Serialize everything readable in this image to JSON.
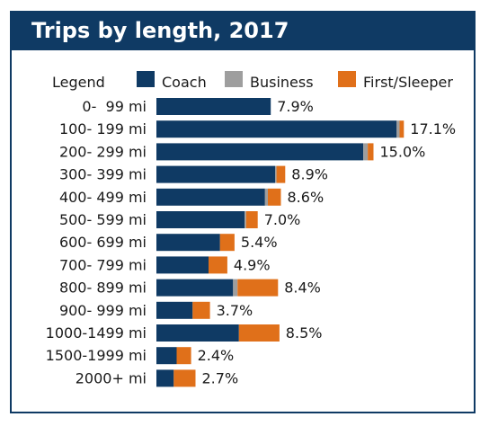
{
  "chart_data": {
    "type": "bar",
    "stacked": true,
    "orientation": "horizontal",
    "title": "Trips by length, 2017",
    "legend_title": "Legend",
    "legend_position": "top",
    "categories": [
      "0-  99 mi",
      "100- 199 mi",
      "200- 299 mi",
      "300- 399 mi",
      "400- 499 mi",
      "500- 599 mi",
      "600- 699 mi",
      "700- 799 mi",
      "800- 899 mi",
      "900- 999 mi",
      "1000-1499 mi",
      "1500-1999 mi",
      "2000+ mi"
    ],
    "totals": [
      7.9,
      17.1,
      15.0,
      8.9,
      8.6,
      7.0,
      5.4,
      4.9,
      8.4,
      3.7,
      8.5,
      2.4,
      2.7
    ],
    "total_labels": [
      "7.9%",
      "17.1%",
      "15.0%",
      "8.9%",
      "8.6%",
      "7.0%",
      "5.4%",
      "4.9%",
      "8.4%",
      "3.7%",
      "8.5%",
      "2.4%",
      "2.7%"
    ],
    "series": [
      {
        "name": "Coach",
        "color": "#0f3a64",
        "values": [
          7.9,
          16.6,
          14.3,
          8.2,
          7.5,
          6.1,
          4.4,
          3.6,
          5.3,
          2.5,
          5.7,
          1.4,
          1.2
        ]
      },
      {
        "name": "Business",
        "color": "#9e9e9e",
        "values": [
          0.0,
          0.2,
          0.3,
          0.1,
          0.2,
          0.1,
          0.0,
          0.0,
          0.3,
          0.0,
          0.0,
          0.0,
          0.0
        ]
      },
      {
        "name": "First/Sleeper",
        "color": "#e0701a",
        "values": [
          0.0,
          0.3,
          0.4,
          0.6,
          0.9,
          0.8,
          1.0,
          1.3,
          2.8,
          1.2,
          2.8,
          1.0,
          1.5
        ]
      }
    ],
    "grid": false
  }
}
